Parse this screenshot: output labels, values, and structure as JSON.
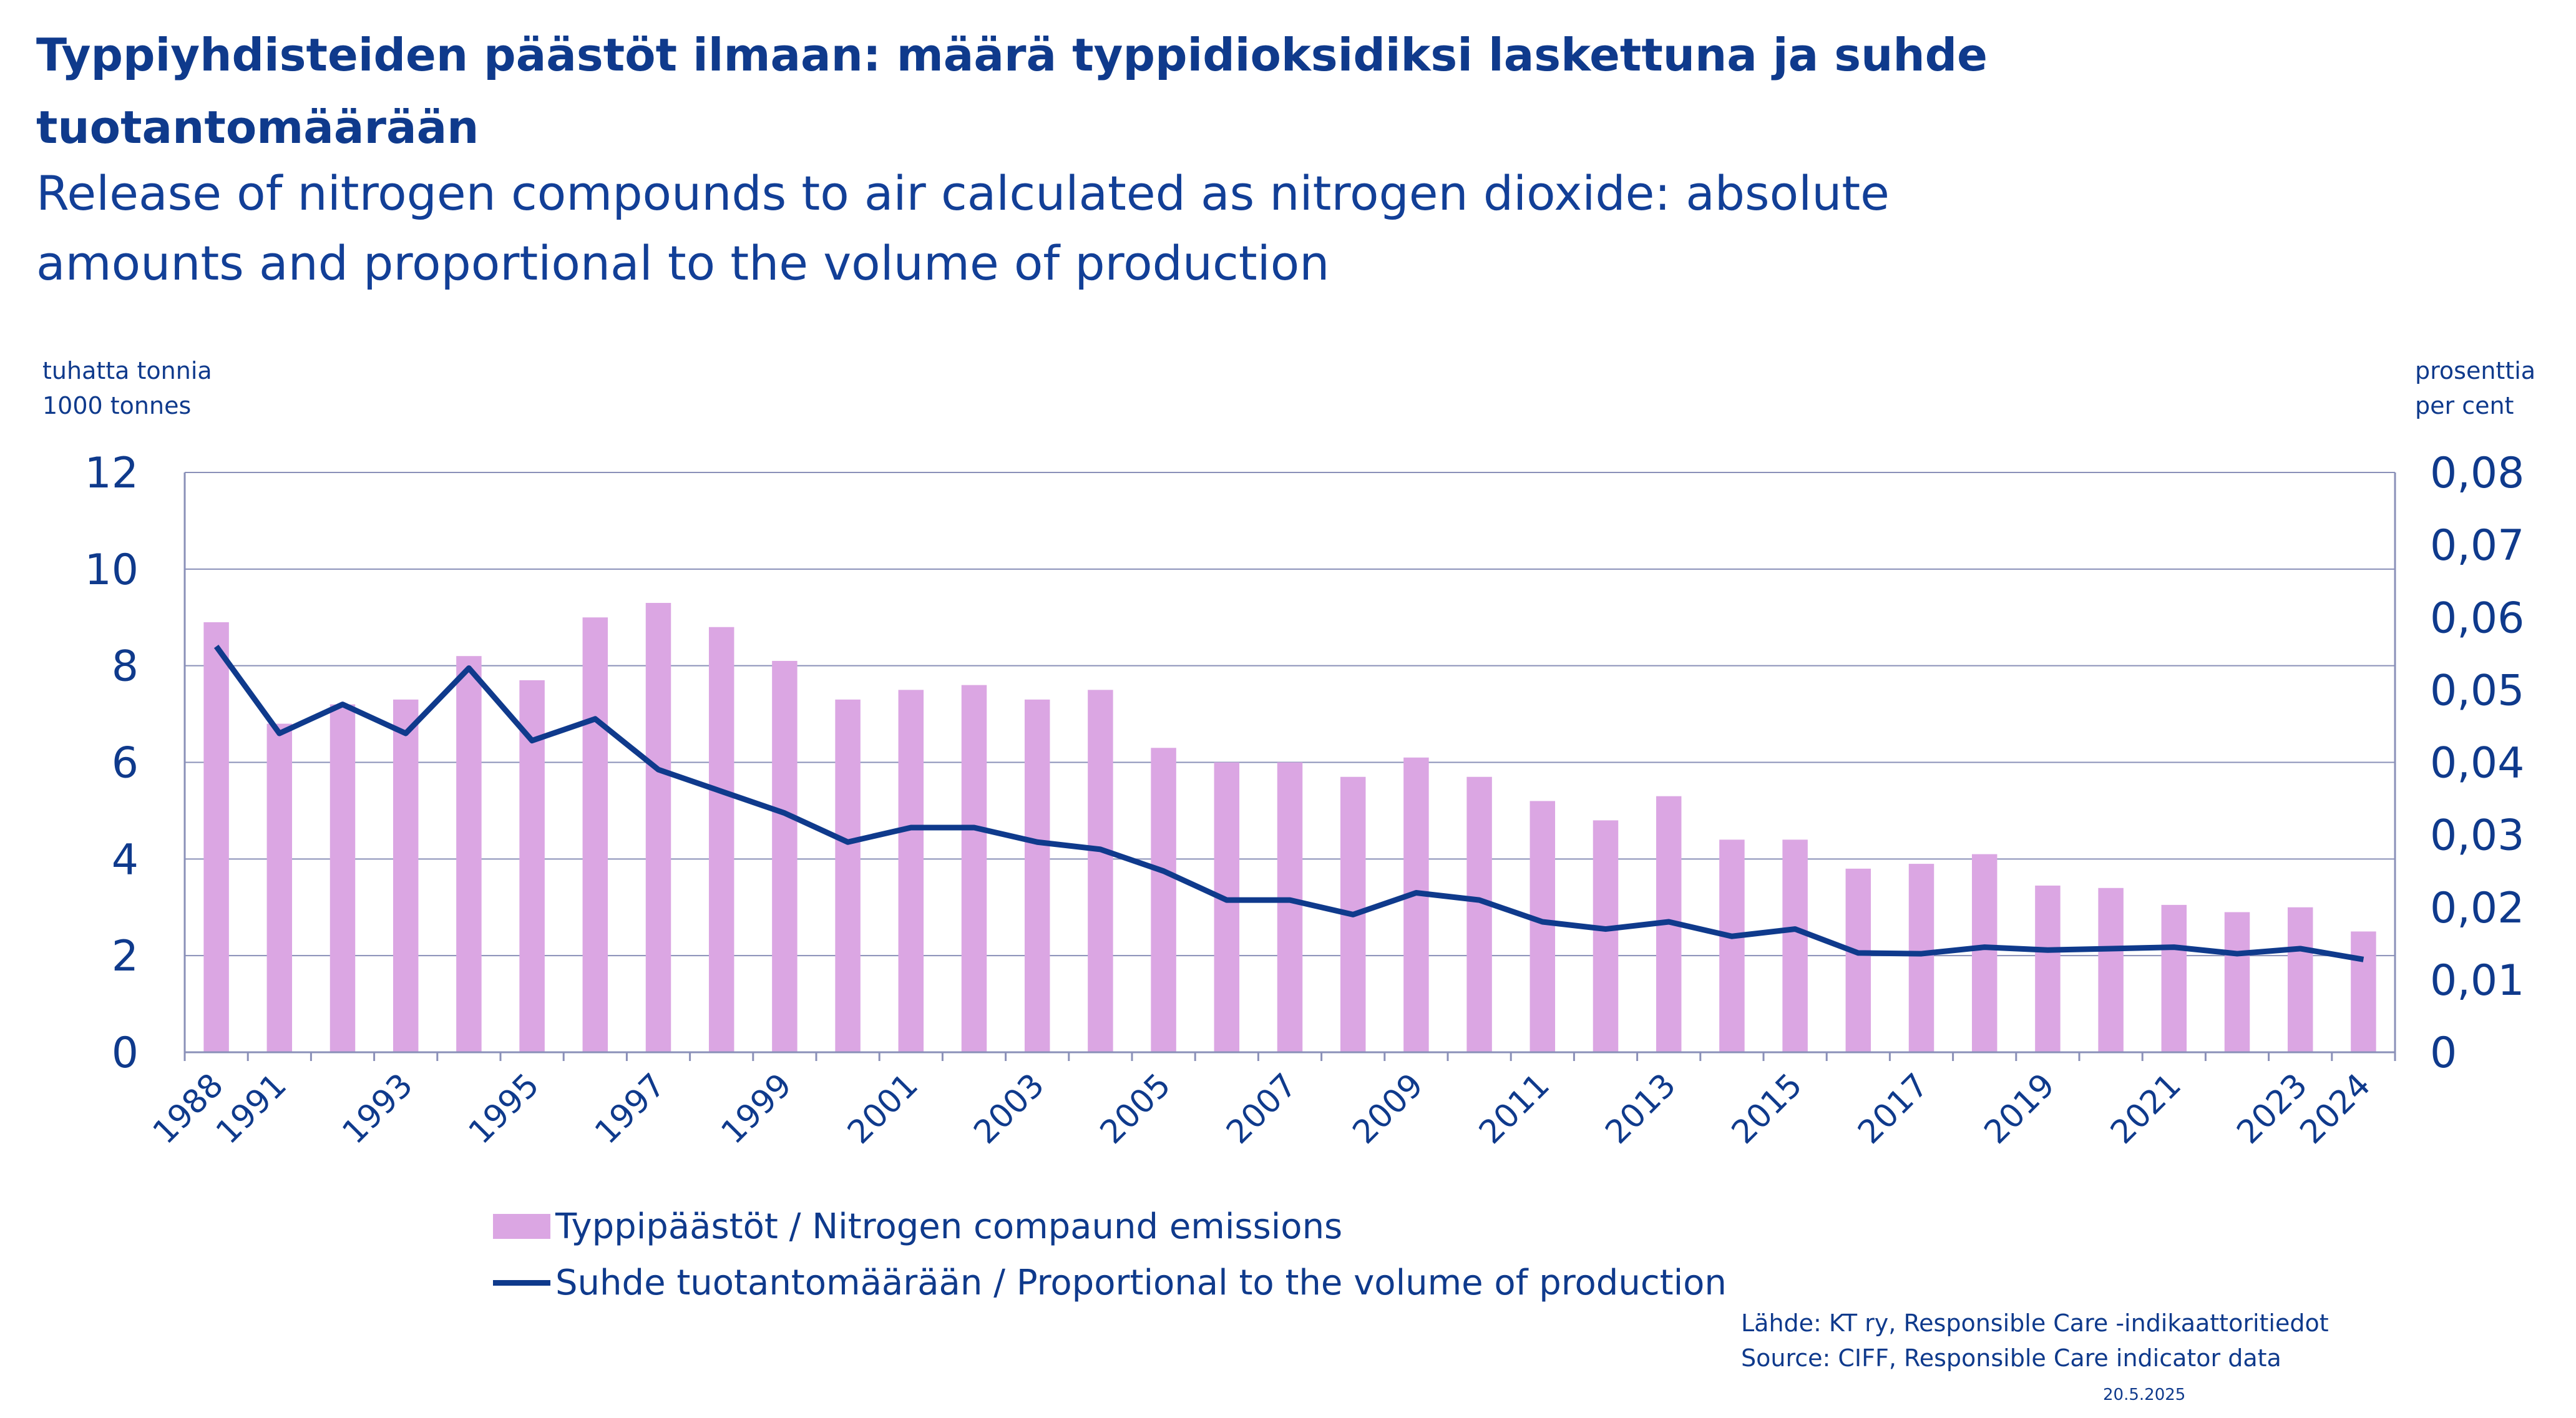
{
  "title": "Typpiyhdisteiden päästöt ilmaan: määrä typpidioksidiksi laskettuna ja suhde tuotantomäärään",
  "subtitle": "Release of nitrogen compounds to air calculated as nitrogen dioxide: absolute amounts and proportional to the volume of production",
  "left_axis_unit": [
    "tuhatta tonnia",
    "1000 tonnes"
  ],
  "right_axis_unit": [
    "prosenttia",
    "per cent"
  ],
  "legend": {
    "bars": "Typpipäästöt / Nitrogen compaund emissions",
    "line": "Suhde tuotantomäärään / Proportional to the volume of production"
  },
  "source": [
    "Lähde: KT ry, Responsible Care -indikaattoritiedot",
    "Source: CIFF, Responsible Care indicator data"
  ],
  "date": "20.5.2025",
  "colors": {
    "bars": "#dba6e3",
    "line": "#0f3a8c",
    "text": "#0f3a8c",
    "grid": "#8a90b8"
  },
  "chart_data": {
    "type": "bar",
    "categories": [
      "1988",
      "1991",
      "1992",
      "1993",
      "1994",
      "1995",
      "1996",
      "1997",
      "1998",
      "1999",
      "2000",
      "2001",
      "2002",
      "2003",
      "2004",
      "2005",
      "2006",
      "2007",
      "2008",
      "2009",
      "2010",
      "2011",
      "2012",
      "2013",
      "2014",
      "2015",
      "2016",
      "2017",
      "2018",
      "2019",
      "2020",
      "2021",
      "2022",
      "2023",
      "2024"
    ],
    "x_tick_labels": [
      "1988",
      "1991",
      "",
      "1993",
      "",
      "1995",
      "",
      "1997",
      "",
      "1999",
      "",
      "2001",
      "",
      "2003",
      "",
      "2005",
      "",
      "2007",
      "",
      "2009",
      "",
      "2011",
      "",
      "2013",
      "",
      "2015",
      "",
      "2017",
      "",
      "2019",
      "",
      "2021",
      "",
      "2023",
      "2024"
    ],
    "series": [
      {
        "name": "Typpipäästöt / Nitrogen compaund emissions",
        "type": "bar",
        "axis": "left",
        "values": [
          8.9,
          6.8,
          7.2,
          7.3,
          8.2,
          7.7,
          9.0,
          9.3,
          8.8,
          8.1,
          7.3,
          7.5,
          7.6,
          7.3,
          7.5,
          6.3,
          6.0,
          6.0,
          5.7,
          6.1,
          5.7,
          5.2,
          4.8,
          5.3,
          4.4,
          4.4,
          3.8,
          3.9,
          4.1,
          3.45,
          3.4,
          3.05,
          2.9,
          3.0,
          2.5
        ]
      },
      {
        "name": "Suhde tuotantomäärään / Proportional to the volume of production",
        "type": "line",
        "axis": "right",
        "values": [
          0.056,
          0.044,
          0.048,
          0.044,
          0.053,
          0.043,
          0.046,
          0.039,
          0.036,
          0.033,
          0.029,
          0.031,
          0.031,
          0.029,
          0.028,
          0.025,
          0.021,
          0.021,
          0.019,
          0.022,
          0.021,
          0.018,
          0.017,
          0.018,
          0.016,
          0.017,
          0.0137,
          0.0136,
          0.0145,
          0.0141,
          0.0143,
          0.0145,
          0.0136,
          0.0143,
          0.0128
        ]
      }
    ],
    "y_left": {
      "min": 0,
      "max": 12,
      "ticks": [
        "0",
        "2",
        "4",
        "6",
        "8",
        "10",
        "12"
      ]
    },
    "y_right": {
      "min": 0,
      "max": 0.08,
      "ticks": [
        "0",
        "0,01",
        "0,02",
        "0,03",
        "0,04",
        "0,05",
        "0,06",
        "0,07",
        "0,08"
      ]
    },
    "grid": true,
    "legend_position": "bottom-left"
  }
}
